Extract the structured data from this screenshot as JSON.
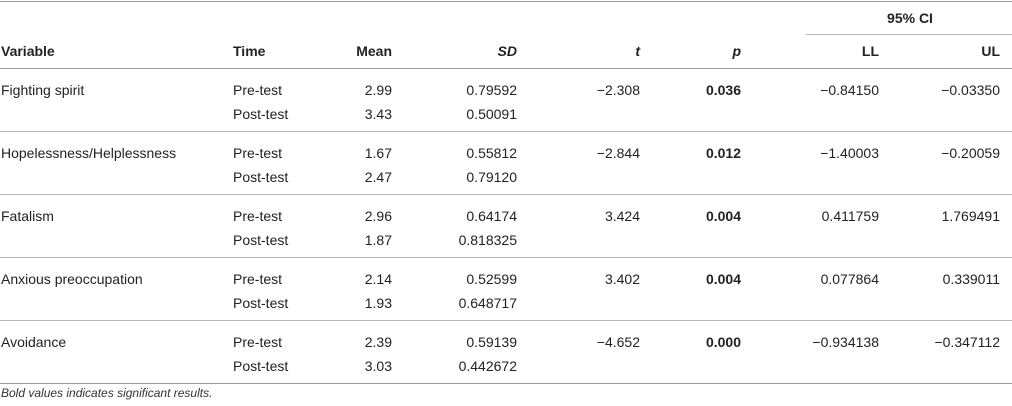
{
  "table": {
    "ci_group_label": "95% CI",
    "headers": {
      "variable": "Variable",
      "time": "Time",
      "mean": "Mean",
      "sd": "SD",
      "t": "t",
      "p": "p",
      "ll": "LL",
      "ul": "UL"
    },
    "rows": [
      {
        "variable": "Fighting spirit",
        "pre": {
          "time": "Pre-test",
          "mean": "2.99",
          "sd": "0.79592"
        },
        "post": {
          "time": "Post-test",
          "mean": "3.43",
          "sd": "0.50091"
        },
        "t": "−2.308",
        "p": "0.036",
        "ll": "−0.84150",
        "ul": "−0.03350"
      },
      {
        "variable": "Hopelessness/Helplessness",
        "pre": {
          "time": "Pre-test",
          "mean": "1.67",
          "sd": "0.55812"
        },
        "post": {
          "time": "Post-test",
          "mean": "2.47",
          "sd": "0.79120"
        },
        "t": "−2.844",
        "p": "0.012",
        "ll": "−1.40003",
        "ul": "−0.20059"
      },
      {
        "variable": "Fatalism",
        "pre": {
          "time": "Pre-test",
          "mean": "2.96",
          "sd": "0.64174"
        },
        "post": {
          "time": "Post-test",
          "mean": "1.87",
          "sd": "0.818325"
        },
        "t": "3.424",
        "p": "0.004",
        "ll": "0.411759",
        "ul": "1.769491"
      },
      {
        "variable": "Anxious preoccupation",
        "pre": {
          "time": "Pre-test",
          "mean": "2.14",
          "sd": "0.52599"
        },
        "post": {
          "time": "Post-test",
          "mean": "1.93",
          "sd": "0.648717"
        },
        "t": "3.402",
        "p": "0.004",
        "ll": "0.077864",
        "ul": "0.339011"
      },
      {
        "variable": "Avoidance",
        "pre": {
          "time": "Pre-test",
          "mean": "2.39",
          "sd": "0.59139"
        },
        "post": {
          "time": "Post-test",
          "mean": "3.03",
          "sd": "0.442672"
        },
        "t": "−4.652",
        "p": "0.000",
        "ll": "−0.934138",
        "ul": "−0.347112"
      }
    ],
    "footnote": "Bold values indicates significant results."
  }
}
